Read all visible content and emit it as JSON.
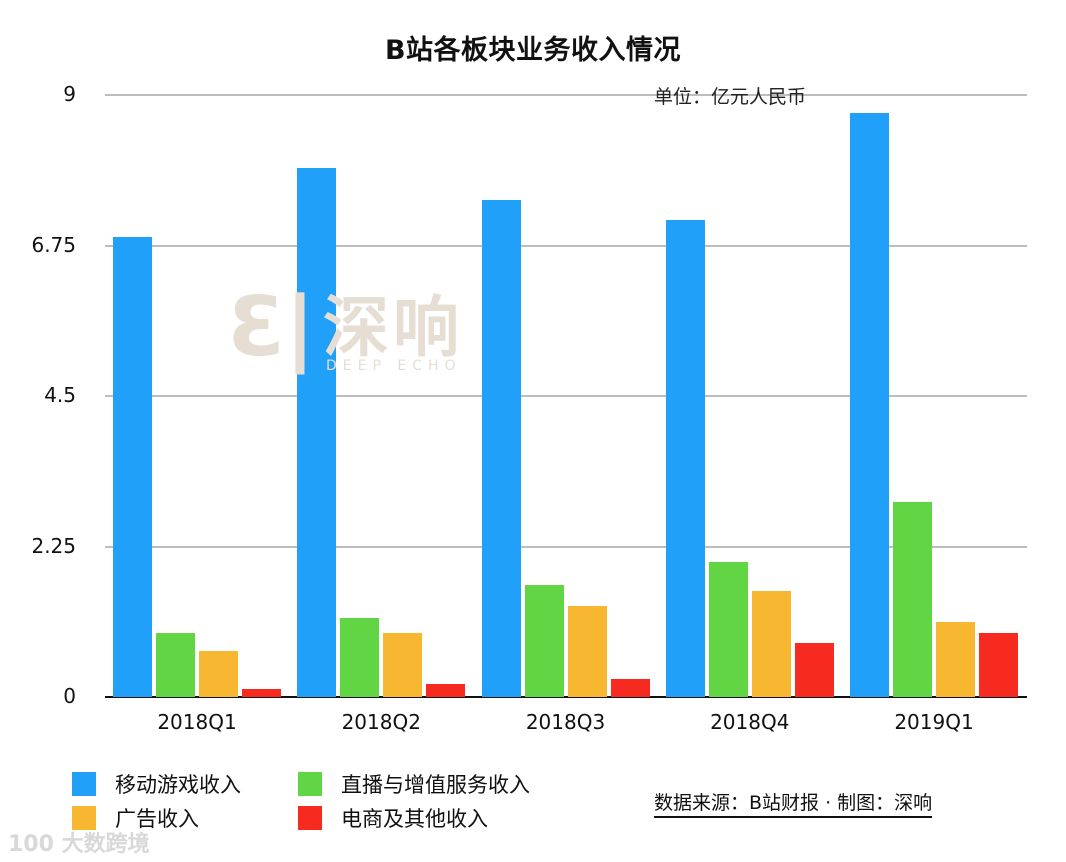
{
  "title": "B站各板块业务收入情况",
  "unit": "单位：亿元人民币",
  "source": "数据来源：B站财报 · 制图：深响",
  "watermarks": {
    "center_logo": "Ɛ|",
    "center_cn": "深响",
    "center_en": "DEEP ECHO",
    "corner": "100 大数跨境"
  },
  "colors": {
    "mobile_games": "#20a0f8",
    "live_vas": "#62d545",
    "advertising": "#f7b731",
    "ecommerce_other": "#f72a20",
    "grid": "#bdbdbd",
    "axis": "#111111"
  },
  "chart_data": {
    "type": "bar",
    "title": "B站各板块业务收入情况",
    "subtitle": "单位：亿元人民币",
    "xlabel": "",
    "ylabel": "",
    "categories": [
      "2018Q1",
      "2018Q2",
      "2018Q3",
      "2018Q4",
      "2019Q1"
    ],
    "series": [
      {
        "name": "移动游戏收入",
        "color": "#20a0f8",
        "values": [
          6.88,
          7.91,
          7.43,
          7.13,
          8.73
        ]
      },
      {
        "name": "直播与增值服务收入",
        "color": "#62d545",
        "values": [
          0.96,
          1.18,
          1.67,
          2.02,
          2.91
        ]
      },
      {
        "name": "广告收入",
        "color": "#f7b731",
        "values": [
          0.69,
          0.96,
          1.36,
          1.58,
          1.12
        ]
      },
      {
        "name": "电商及其他收入",
        "color": "#f72a20",
        "values": [
          0.12,
          0.19,
          0.27,
          0.81,
          0.96
        ]
      }
    ],
    "ylim": [
      0,
      9
    ],
    "yticks": [
      "0",
      "2.25",
      "4.5",
      "6.75",
      "9"
    ],
    "grid": true,
    "legend_position": "bottom-left",
    "annotations": [
      "单位：亿元人民币",
      "数据来源：B站财报 · 制图：深响"
    ]
  },
  "legend": [
    {
      "label": "移动游戏收入",
      "color": "#20a0f8"
    },
    {
      "label": "直播与增值服务收入",
      "color": "#62d545"
    },
    {
      "label": "广告收入",
      "color": "#f7b731"
    },
    {
      "label": "电商及其他收入",
      "color": "#f72a20"
    }
  ]
}
